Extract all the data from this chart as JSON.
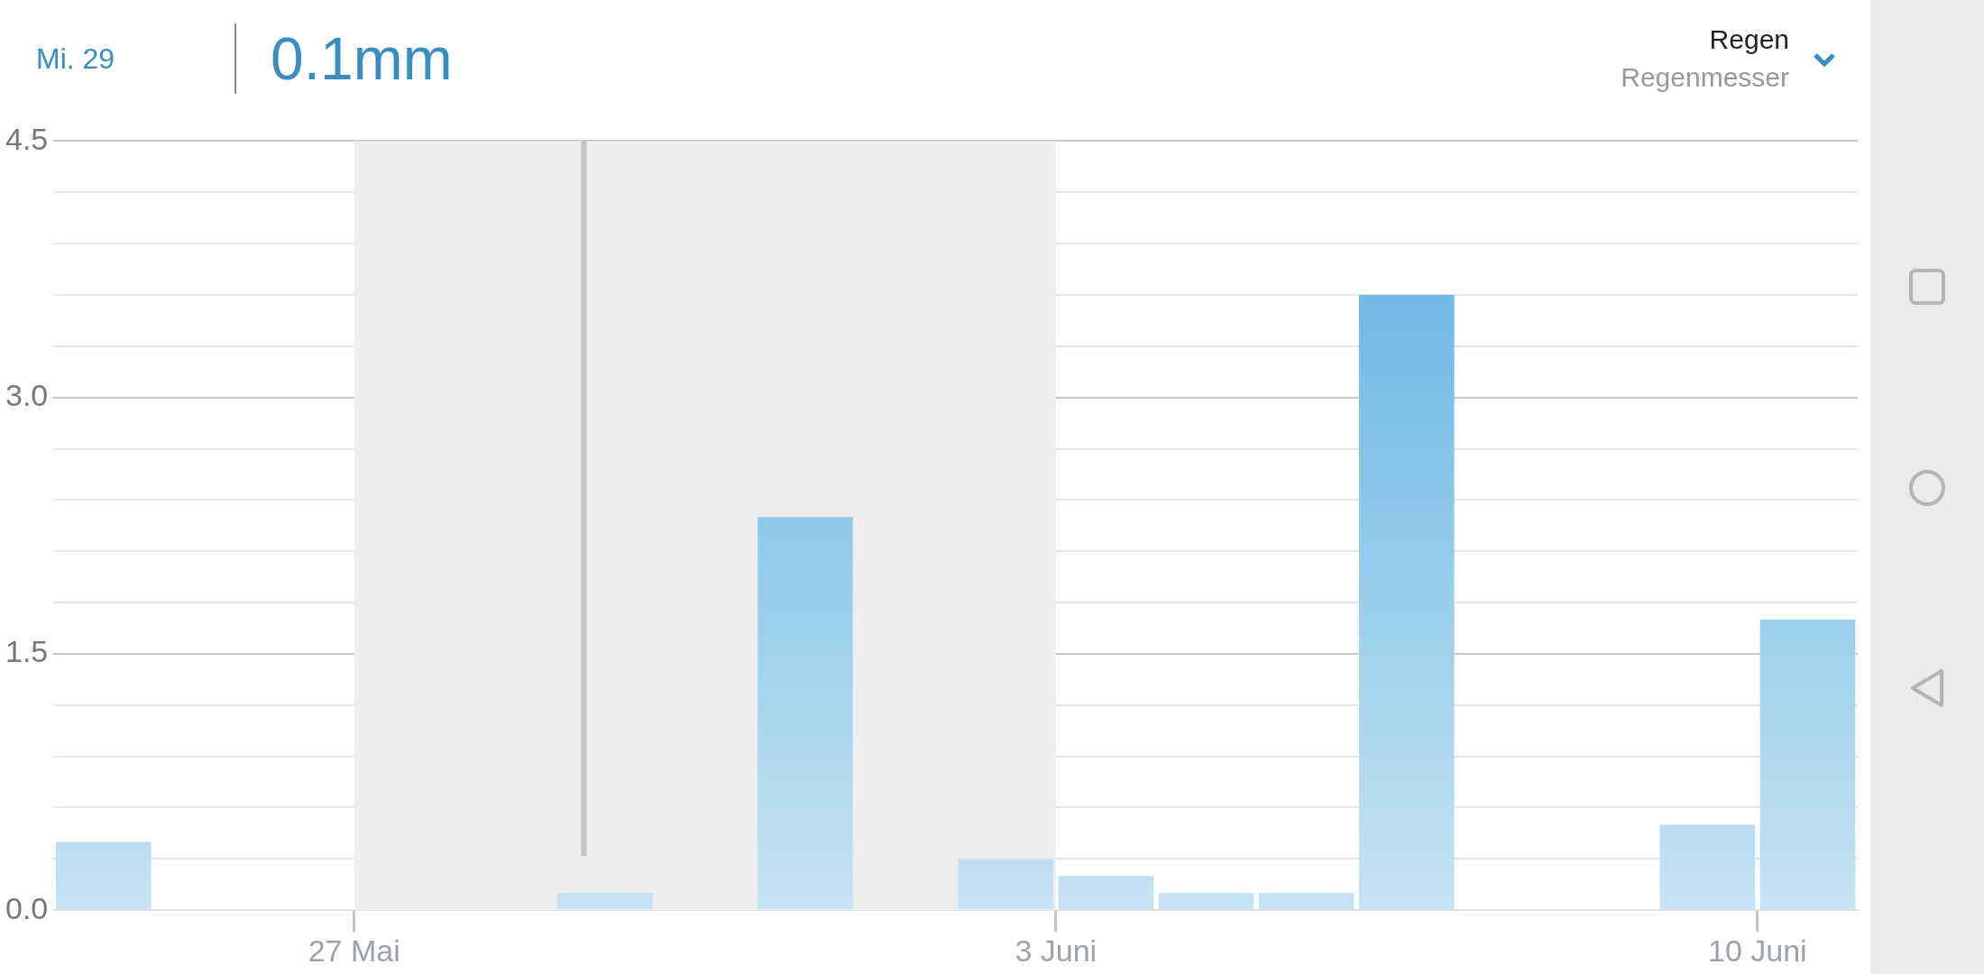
{
  "chart_data": {
    "type": "bar",
    "title": "Regen",
    "subtitle": "Regenmesser",
    "annotations": [
      "Mi. 29",
      "0.1mm"
    ],
    "x": [
      "--05-24T12:00",
      "--05-25T12:00",
      "--05-26T12:00",
      "--05-27T12:00",
      "--05-28T12:00",
      "--05-29T12:00",
      "--05-30T12:00",
      "--05-31T12:00",
      "--06-01T12:00",
      "--06-02T12:00",
      "--06-03T12:00",
      "--06-04T12:00",
      "--06-05T12:00",
      "--06-06T12:00",
      "--06-07T12:00",
      "--06-08T12:00",
      "--06-09T12:00",
      "--06-10T12:00"
    ],
    "values": [
      0.4,
      0,
      0,
      0,
      0,
      0.1,
      0,
      2.3,
      0,
      0.3,
      0.2,
      0.1,
      0.1,
      3.6,
      0,
      0,
      0.5,
      1.7
    ],
    "color": "#5aafe0",
    "xlim": [
      "--05-24",
      "--06-11"
    ],
    "xticks": [
      {
        "value": "--05-27",
        "label": "27 Mai"
      },
      {
        "value": "--06-03",
        "label": "3 Juni"
      },
      {
        "value": "--06-10",
        "label": "10 Juni"
      }
    ],
    "ylim": [
      0,
      4.5
    ],
    "yticks": [
      {
        "value": 0,
        "label": "0.0"
      },
      {
        "value": 0.3,
        "label": null
      },
      {
        "value": 0.6,
        "label": null
      },
      {
        "value": 0.9,
        "label": null
      },
      {
        "value": 1.2,
        "label": null
      },
      {
        "value": 1.5,
        "label": "1.5"
      },
      {
        "value": 1.8,
        "label": null
      },
      {
        "value": 2.1,
        "label": null
      },
      {
        "value": 2.4,
        "label": null
      },
      {
        "value": 2.7,
        "label": null
      },
      {
        "value": 3,
        "label": "3.0"
      },
      {
        "value": 3.3,
        "label": null
      },
      {
        "value": 3.6,
        "label": null
      },
      {
        "value": 3.9,
        "label": null
      },
      {
        "value": 4.2,
        "label": null
      },
      {
        "value": 4.5,
        "label": "4.5"
      }
    ],
    "grid": "y",
    "bands": [
      {
        "axis": "x",
        "from": "--05-27",
        "to": "--06-03",
        "color": "#eeeeee"
      }
    ],
    "ref_lines": [
      {
        "axis": "x",
        "value": "--05-29T07:00",
        "color": "#c4c4c4"
      }
    ]
  }
}
